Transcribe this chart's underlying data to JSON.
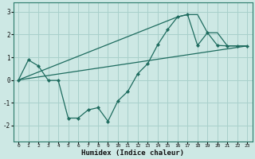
{
  "xlabel": "Humidex (Indice chaleur)",
  "bg_color": "#cde8e4",
  "line_color": "#1d6b5e",
  "grid_color": "#a8d0cb",
  "xlim": [
    -0.5,
    23.5
  ],
  "ylim": [
    -2.7,
    3.4
  ],
  "yticks": [
    -2,
    -1,
    0,
    1,
    2,
    3
  ],
  "xticks": [
    0,
    1,
    2,
    3,
    4,
    5,
    6,
    7,
    8,
    9,
    10,
    11,
    12,
    13,
    14,
    15,
    16,
    17,
    18,
    19,
    20,
    21,
    22,
    23
  ],
  "line1_x": [
    0,
    1,
    2,
    3,
    4,
    5,
    6,
    7,
    8,
    9,
    10,
    11,
    12,
    13,
    14,
    15,
    16,
    17,
    18,
    19,
    20,
    21,
    22,
    23
  ],
  "line1_y": [
    0.0,
    0.88,
    0.62,
    -0.02,
    -0.02,
    -1.68,
    -1.68,
    -1.32,
    -1.22,
    -1.82,
    -0.92,
    -0.5,
    0.28,
    0.72,
    1.55,
    2.22,
    2.78,
    2.88,
    1.52,
    2.08,
    1.52,
    1.5,
    1.5,
    1.5
  ],
  "line2_x": [
    0,
    23
  ],
  "line2_y": [
    0.0,
    1.5
  ],
  "line3_x": [
    0,
    16,
    17,
    18,
    19,
    20,
    21,
    22,
    23
  ],
  "line3_y": [
    0.0,
    2.78,
    2.88,
    2.88,
    2.08,
    2.08,
    1.5,
    1.5,
    1.5
  ]
}
